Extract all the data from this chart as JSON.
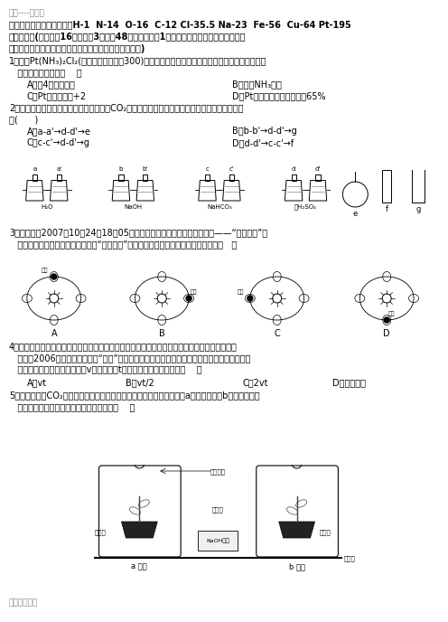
{
  "title": "学习----好资料",
  "atomic_masses": "可能用到的相对原子质量：H-1  N-14  O-16  C-12 Cl-35.5 Na-23  Fe-56  Cu-64 Pt-195",
  "sec1_line1": "一、选择题(本大题有16题，每题3分，共48分，每题只有1个选项正确，多选、错选、不选均",
  "sec1_line2": "得零分，将选出的答案选项字母填在答题卷的相应空格内)",
  "q1_line1": "1．顺式Pt(NH₃)₂Cl₂(俗称顺铂，式量为300)是临床广泛使用的抗胰肿瘤药物，下列有关该物质的",
  "q1_line2": "   说法中不正确的是（    ）",
  "q1_A": "A．由4种元素组成",
  "q1_B": "B．含有NH₃分子",
  "q1_C": "C．Pt的化合价为+2",
  "q1_D": "D．Pt元素的质量百分含量为65%",
  "q2_line1": "2．为了净化和收集由盐酸和大理石制得的CO₂气体，从下图中选择合适的的装置并连接，合理的",
  "q2_line2": "是(      )",
  "q2_A": "A．a-a'→d-d'→e",
  "q2_B": "B．b-b'→d-d'→g",
  "q2_C": "C．c-c'→d-d'→g",
  "q2_D": "D．d-d'→c-c'→f",
  "q3_line1": "3．北京时间2007年10月24日18点05分我国自主研制的第一个月球探测器——“嫦娥一号”卫",
  "q3_line2": "   星在西昌卫星发射中心顺利升空，“嫦娥一号”发射升空时，地球在公转轨道的位置是（   ）",
  "q4_line1": "4．物体在一条直线上运动，如果在相等的时间内速度的增加值相等，这种运动就叫做匀加速直线",
  "q4_line2": "   运动。2006年我国自行研制的“歼龙”战机在某地试飞成功。假设该战机起飞前从静止开始做匀",
  "q4_line3": "   加速直线运动，达到起飞速度v所需时间为t，则起飞前的运动距离为（    ）",
  "q4_A": "A．vt",
  "q4_B": "B．vt/2",
  "q4_C": "C．2vt",
  "q4_D": "D．不能确定",
  "q5_line1": "5．下图为探究CO₂是否为植物光合作用的原料的实验装置示意图，其中a为实验装置，b为对照装置，",
  "q5_line2": "   有关用塑料袋扎紧花盆的实验设计思路是（    ）",
  "liq_H2O": "H₂O",
  "liq_NaOH": "NaOH",
  "liq_NaHCO3": "NaHCO₃",
  "liq_H2SO4": "液H₂SO₄",
  "q5_top_label": "液液棉层",
  "q5_mid_label": "蜡封处",
  "q5_left": "瓦十林",
  "q5_naoh": "NaOH溶液",
  "q5_right": "蒸馏水",
  "q5_bottom": "玻璃板",
  "q5_a": "a 试管",
  "q5_b": "b 试管",
  "footer": "更多精品文档",
  "bg_color": "#ffffff",
  "header_color": "#888888"
}
